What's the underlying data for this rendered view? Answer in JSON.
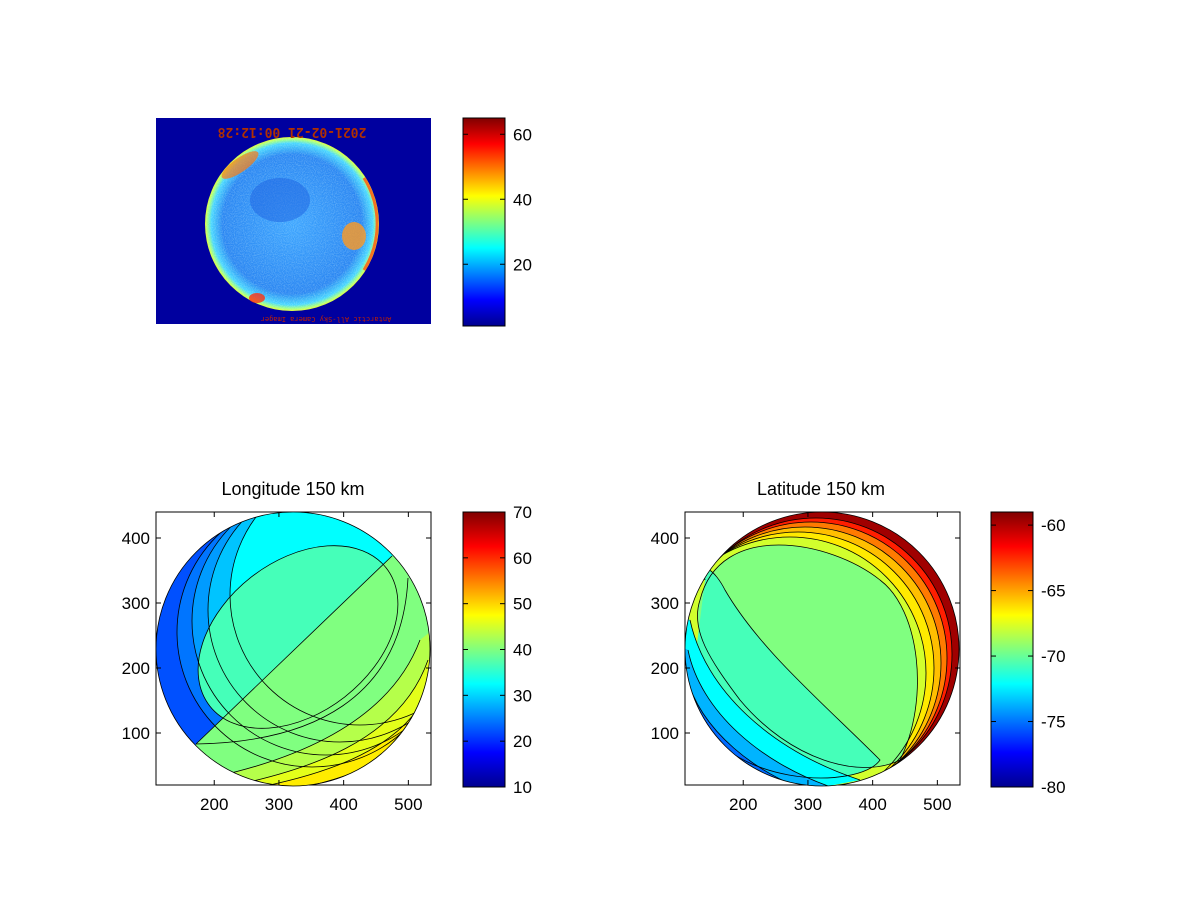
{
  "chart_data": [
    {
      "type": "heatmap",
      "name": "allsky-image",
      "title": "",
      "image_caption_top": "2021-02-21 00:12:28",
      "image_caption_bottom": "Antarctic All-Sky Camera Imager",
      "colorbar": {
        "min": 1,
        "max": 65,
        "ticks": [
          20,
          40,
          60
        ]
      }
    },
    {
      "type": "heatmap",
      "name": "longitude",
      "title": "Longitude 150 km",
      "xlabel": "",
      "ylabel": "",
      "xlim": [
        110,
        535
      ],
      "ylim": [
        20,
        440
      ],
      "xticks": [
        200,
        300,
        400,
        500
      ],
      "yticks": [
        100,
        200,
        300,
        400
      ],
      "circle": {
        "cx": 322,
        "cy": 230,
        "r": 205
      },
      "contour_bands": [
        70,
        65,
        60,
        55,
        52,
        50,
        48,
        46,
        45,
        40,
        35,
        30,
        25,
        20,
        15,
        10
      ],
      "colorbar": {
        "min": 10,
        "max": 70,
        "ticks": [
          10,
          20,
          30,
          40,
          50,
          60,
          70
        ]
      }
    },
    {
      "type": "heatmap",
      "name": "latitude",
      "title": "Latitude 150 km",
      "xlabel": "",
      "ylabel": "",
      "xlim": [
        110,
        535
      ],
      "ylim": [
        20,
        440
      ],
      "xticks": [
        200,
        300,
        400,
        500
      ],
      "yticks": [
        100,
        200,
        300,
        400
      ],
      "circle": {
        "cx": 322,
        "cy": 230,
        "r": 205
      },
      "contour_bands": [
        -59.5,
        -61,
        -62.5,
        -64,
        -65.5,
        -67,
        -69,
        -71,
        -73,
        -74.5,
        -76,
        -77.5,
        -79
      ],
      "colorbar": {
        "min": -80,
        "max": -59,
        "ticks": [
          -80,
          -75,
          -70,
          -65,
          -60
        ]
      }
    }
  ],
  "colors": {
    "background": "#ffffff",
    "outside_image": "#00009f",
    "axis": "#000000"
  }
}
